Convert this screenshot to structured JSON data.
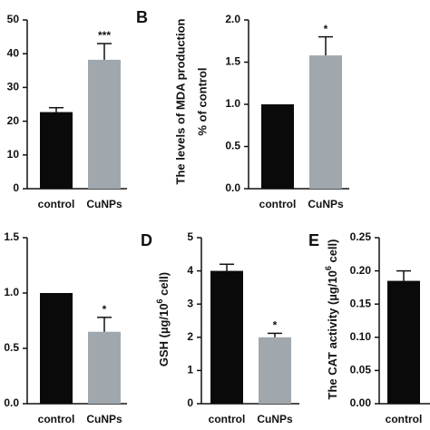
{
  "chart_data": [
    {
      "type": "bar",
      "categories": [
        "control",
        "CuNPs"
      ],
      "values": [
        22.7,
        38.2
      ],
      "errors": [
        1.3,
        4.8
      ],
      "colors": [
        "#0a0a0a",
        "#a0a8ae"
      ],
      "ylim": [
        0,
        50
      ],
      "yticks": [
        0,
        10,
        20,
        30,
        40,
        50
      ],
      "annotations": [
        {
          "x": "CuNPs",
          "text": "***"
        }
      ]
    },
    {
      "type": "bar",
      "panel": "B",
      "ylabel": [
        "The levels of MDA production",
        "% of control"
      ],
      "categories": [
        "control",
        "CuNPs"
      ],
      "values": [
        1.0,
        1.58
      ],
      "errors": [
        0,
        0.22
      ],
      "colors": [
        "#0a0a0a",
        "#a0a8ae"
      ],
      "ylim": [
        0,
        2.0
      ],
      "yticks": [
        {
          "value": 0,
          "label": "0.0"
        },
        0.5,
        {
          "value": 1,
          "label": "1.0"
        },
        1.5,
        {
          "value": 2,
          "label": "2.0"
        }
      ],
      "annotations": [
        {
          "x": "CuNPs",
          "text": "*"
        }
      ]
    },
    {
      "type": "bar",
      "categories": [
        "control",
        "CuNPs"
      ],
      "values": [
        1.0,
        0.65
      ],
      "errors": [
        0,
        0.13
      ],
      "colors": [
        "#0a0a0a",
        "#a0a8ae"
      ],
      "ylim": [
        0,
        1.5
      ],
      "yticks": [
        {
          "value": 0,
          "label": "0.0"
        },
        0.5,
        {
          "value": 1,
          "label": "1.0"
        },
        1.5
      ],
      "annotations": [
        {
          "x": "CuNPs",
          "text": "*"
        }
      ]
    },
    {
      "type": "bar",
      "panel": "D",
      "ylabel_parts": [
        "GSH (µg/10",
        "6",
        " cell)"
      ],
      "categories": [
        "control",
        "CuNPs"
      ],
      "values": [
        4.0,
        2.0
      ],
      "errors": [
        0.2,
        0.12
      ],
      "colors": [
        "#0a0a0a",
        "#a0a8ae"
      ],
      "ylim": [
        0,
        5
      ],
      "yticks": [
        0,
        1,
        2,
        3,
        4,
        5
      ],
      "annotations": [
        {
          "x": "CuNPs",
          "text": "*"
        }
      ]
    },
    {
      "type": "bar",
      "panel": "E",
      "ylabel_parts": [
        "The CAT activity (µg/10",
        "6",
        " cell)"
      ],
      "categories": [
        "control"
      ],
      "values": [
        0.185
      ],
      "errors": [
        0.015
      ],
      "colors": [
        "#0a0a0a"
      ],
      "ylim": [
        0,
        0.25
      ],
      "yticks": [
        {
          "value": 0,
          "label": "0.00"
        },
        {
          "value": 0.05,
          "label": "0.05"
        },
        {
          "value": 0.1,
          "label": "0.10"
        },
        {
          "value": 0.15,
          "label": "0.15"
        },
        {
          "value": 0.2,
          "label": "0.20"
        },
        {
          "value": 0.25,
          "label": "0.25"
        }
      ]
    }
  ]
}
